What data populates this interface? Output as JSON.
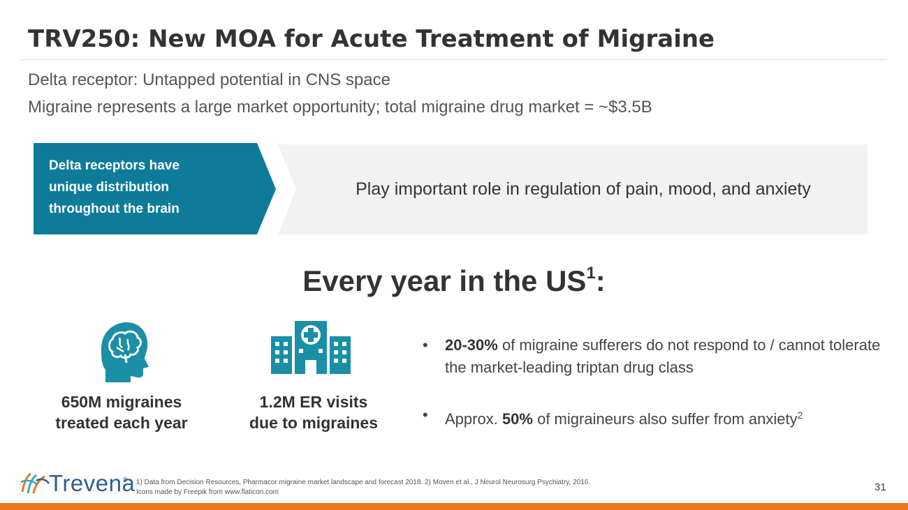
{
  "slide": {
    "title": "TRV250: New MOA for Acute Treatment of Migraine",
    "subtitles": [
      "Delta receptor: Untapped potential in CNS space",
      "Migraine represents a large market opportunity; total migraine drug market = ~$3.5B"
    ]
  },
  "banner": {
    "chevron_lines": [
      "Delta receptors have",
      "unique distribution",
      "throughout the brain"
    ],
    "description": "Play important role in regulation of pain, mood, and anxiety",
    "chevron_color": "#0e7c99",
    "panel_color": "#f2f2f2"
  },
  "section": {
    "heading": "Every year in the US",
    "heading_sup": "1",
    "heading_suffix": ":"
  },
  "stats": [
    {
      "icon": "head-brain-icon",
      "lines": [
        "650M migraines",
        "treated each year"
      ]
    },
    {
      "icon": "hospital-icon",
      "lines": [
        "1.2M ER visits",
        "due to migraines"
      ]
    }
  ],
  "bullets": [
    {
      "marker": "•",
      "bold": "20-30%",
      "text": " of migraine sufferers do not respond to / cannot tolerate the market-leading triptan drug class"
    },
    {
      "marker": "•",
      "prefix": "Approx. ",
      "bold": "50%",
      "text": " of migraineurs also suffer from anxiety",
      "sup": "2"
    }
  ],
  "footer": {
    "logo_text": "Trevena",
    "logo_mark": "®",
    "notes": [
      "1) Data from Decision Resources, Pharmacor migraine market landscape and forecast 2018. 2) Moven et al., J Neurol Neurosurg Psychiatry, 2016.",
      "Icons made by Freepik from www.flaticon.com"
    ],
    "page_number": "31"
  },
  "colors": {
    "accent_teal": "#0e7c99",
    "icon_teal": "#1a8fa6",
    "brand_orange": "#e87722",
    "brand_blue": "#2f5f8c"
  }
}
